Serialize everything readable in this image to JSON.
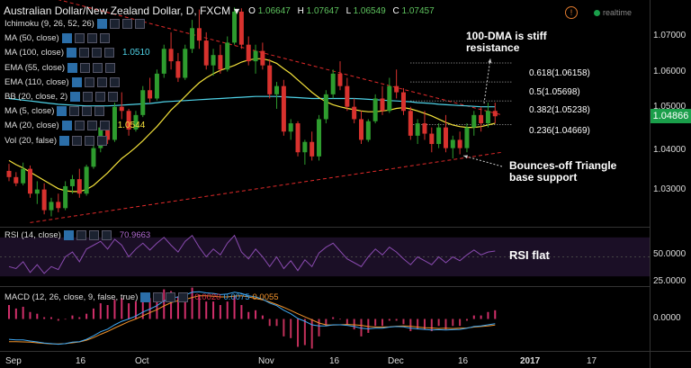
{
  "header": {
    "symbol": "Australian Dollar/New Zealand Dollar, D, FXCM",
    "dropdown": "▾",
    "o_label": "O",
    "o_value": "1.06647",
    "h_label": "H",
    "h_value": "1.07647",
    "l_label": "L",
    "l_value": "1.06549",
    "c_label": "C",
    "c_value": "1.07457",
    "realtime": "realtime",
    "warn": "!"
  },
  "indicators": [
    {
      "label": "Ichimoku (9, 26, 52, 26)",
      "value": "",
      "color": "#ffffff"
    },
    {
      "label": "MA (50, close)",
      "value": "",
      "color": "#ffffff"
    },
    {
      "label": "MA (100, close)",
      "value": "1.0510",
      "color": "#4fd3e8"
    },
    {
      "label": "EMA (55, close)",
      "value": "",
      "color": "#ffffff"
    },
    {
      "label": "EMA (110, close)",
      "value": "",
      "color": "#ffffff"
    },
    {
      "label": "BB (20, close, 2)",
      "value": "",
      "color": "#ffffff"
    },
    {
      "label": "MA (5, close)",
      "value": "",
      "color": "#ffffff"
    },
    {
      "label": "MA (20, close)",
      "value": "1.0544",
      "color": "#f4e23b"
    },
    {
      "label": "Vol (20, false)",
      "value": "",
      "color": "#ffffff"
    }
  ],
  "price_axis": {
    "ticks": [
      "1.07000",
      "1.06000",
      "1.05000",
      "1.04000",
      "1.03000"
    ],
    "current": "1.04866"
  },
  "rsi": {
    "label": "RSI (14, close)",
    "value": "70.9663",
    "value_color": "#b36bd6",
    "ticks": [
      "50.0000",
      "25.0000"
    ],
    "note": "RSI flat"
  },
  "macd": {
    "label": "MACD (12, 26, close, 9, false, true)",
    "v1": "0.0020",
    "v2": "0.0075",
    "v3": "0.0055",
    "c1": "#e0304a",
    "c2": "#3fa9f5",
    "c3": "#f0922b",
    "ticks": [
      "0.0000"
    ]
  },
  "xaxis": {
    "labels": [
      "Sep",
      "16",
      "Oct",
      "Nov",
      "16",
      "Dec",
      "16",
      "2017",
      "17"
    ]
  },
  "fib_levels": [
    {
      "label": "0.618(1.06158)",
      "price": 1.06158
    },
    {
      "label": "0.5(1.05698)",
      "price": 1.05698
    },
    {
      "label": "0.382(1.05238)",
      "price": 1.05238
    },
    {
      "label": "0.236(1.04669)",
      "price": 1.04669
    }
  ],
  "annotations": {
    "resistance": "100-DMA is stiff resistance",
    "support": "Bounces-off Triangle base support"
  },
  "colors": {
    "up": "#2e9c2e",
    "down": "#d8322e",
    "ma20": "#f4e23b",
    "ma100": "#4fd3e8",
    "trend": "#e02a2a"
  },
  "chart_data": {
    "type": "candlestick",
    "title": "Australian Dollar/New Zealand Dollar, D, FXCM",
    "ylabel": "",
    "ylim": [
      1.022,
      1.0755
    ],
    "candles": [
      [
        1.0355,
        1.0372,
        1.033,
        1.034
      ],
      [
        1.034,
        1.0352,
        1.0318,
        1.0325
      ],
      [
        1.0325,
        1.0375,
        1.032,
        1.036
      ],
      [
        1.036,
        1.0368,
        1.029,
        1.03
      ],
      [
        1.03,
        1.033,
        1.0275,
        1.031
      ],
      [
        1.031,
        1.0325,
        1.025,
        1.026
      ],
      [
        1.026,
        1.029,
        1.0245,
        1.028
      ],
      [
        1.028,
        1.03,
        1.0255,
        1.0265
      ],
      [
        1.0265,
        1.033,
        1.026,
        1.0318
      ],
      [
        1.0318,
        1.0345,
        1.03,
        1.0335
      ],
      [
        1.0335,
        1.036,
        1.029,
        1.03
      ],
      [
        1.03,
        1.037,
        1.0295,
        1.0365
      ],
      [
        1.0365,
        1.042,
        1.036,
        1.041
      ],
      [
        1.041,
        1.047,
        1.04,
        1.046
      ],
      [
        1.046,
        1.047,
        1.042,
        1.043
      ],
      [
        1.043,
        1.052,
        1.0425,
        1.051
      ],
      [
        1.051,
        1.0545,
        1.048,
        1.05
      ],
      [
        1.05,
        1.0505,
        1.044,
        1.0455
      ],
      [
        1.0455,
        1.05,
        1.045,
        1.049
      ],
      [
        1.049,
        1.056,
        1.0485,
        1.055
      ],
      [
        1.055,
        1.058,
        1.052,
        1.053
      ],
      [
        1.053,
        1.06,
        1.0525,
        1.059
      ],
      [
        1.059,
        1.066,
        1.058,
        1.065
      ],
      [
        1.065,
        1.069,
        1.06,
        1.062
      ],
      [
        1.062,
        1.064,
        1.057,
        1.058
      ],
      [
        1.058,
        1.066,
        1.0575,
        1.065
      ],
      [
        1.065,
        1.072,
        1.064,
        1.07
      ],
      [
        1.07,
        1.0745,
        1.065,
        1.067
      ],
      [
        1.067,
        1.069,
        1.06,
        1.061
      ],
      [
        1.061,
        1.065,
        1.0585,
        1.0635
      ],
      [
        1.0635,
        1.066,
        1.059,
        1.06
      ],
      [
        1.06,
        1.068,
        1.0595,
        1.0665
      ],
      [
        1.0665,
        1.075,
        1.066,
        1.074
      ],
      [
        1.074,
        1.0748,
        1.065,
        1.066
      ],
      [
        1.066,
        1.068,
        1.061,
        1.062
      ],
      [
        1.062,
        1.066,
        1.059,
        1.0645
      ],
      [
        1.0645,
        1.0665,
        1.06,
        1.061
      ],
      [
        1.061,
        1.0625,
        1.053,
        1.054
      ],
      [
        1.054,
        1.057,
        1.0505,
        1.056
      ],
      [
        1.056,
        1.0575,
        1.044,
        1.045
      ],
      [
        1.045,
        1.048,
        1.043,
        1.047
      ],
      [
        1.047,
        1.0475,
        1.039,
        1.04
      ],
      [
        1.04,
        1.043,
        1.037,
        1.0425
      ],
      [
        1.0425,
        1.045,
        1.038,
        1.039
      ],
      [
        1.039,
        1.049,
        1.038,
        1.048
      ],
      [
        1.048,
        1.055,
        1.047,
        1.054
      ],
      [
        1.054,
        1.06,
        1.053,
        1.059
      ],
      [
        1.059,
        1.062,
        1.055,
        1.056
      ],
      [
        1.056,
        1.058,
        1.05,
        1.051
      ],
      [
        1.051,
        1.053,
        1.047,
        1.048
      ],
      [
        1.048,
        1.05,
        1.042,
        1.043
      ],
      [
        1.043,
        1.048,
        1.0425,
        1.0475
      ],
      [
        1.0475,
        1.054,
        1.047,
        1.053
      ],
      [
        1.053,
        1.056,
        1.049,
        1.05
      ],
      [
        1.05,
        1.058,
        1.0495,
        1.056
      ],
      [
        1.056,
        1.06,
        1.053,
        1.0545
      ],
      [
        1.0545,
        1.0555,
        1.049,
        1.05
      ],
      [
        1.05,
        1.051,
        1.043,
        1.044
      ],
      [
        1.044,
        1.048,
        1.042,
        1.047
      ],
      [
        1.047,
        1.05,
        1.043,
        1.0445
      ],
      [
        1.0445,
        1.046,
        1.04,
        1.042
      ],
      [
        1.042,
        1.047,
        1.041,
        1.046
      ],
      [
        1.046,
        1.049,
        1.04,
        1.041
      ],
      [
        1.041,
        1.044,
        1.0385,
        1.043
      ],
      [
        1.043,
        1.045,
        1.0395,
        1.041
      ],
      [
        1.041,
        1.047,
        1.04,
        1.046
      ],
      [
        1.046,
        1.05,
        1.044,
        1.049
      ],
      [
        1.049,
        1.051,
        1.045,
        1.047
      ],
      [
        1.047,
        1.052,
        1.046,
        1.05
      ],
      [
        1.05,
        1.052,
        1.047,
        1.0487
      ]
    ],
    "ma20": [
      1.038,
      1.037,
      1.0362,
      1.0352,
      1.0342,
      1.0332,
      1.0322,
      1.0312,
      1.0307,
      1.0305,
      1.0305,
      1.031,
      1.032,
      1.0335,
      1.035,
      1.0368,
      1.0385,
      1.0398,
      1.0412,
      1.0428,
      1.0445,
      1.0462,
      1.0482,
      1.0502,
      1.0518,
      1.0535,
      1.0552,
      1.0568,
      1.058,
      1.059,
      1.0598,
      1.0604,
      1.061,
      1.0618,
      1.0623,
      1.0626,
      1.0626,
      1.0622,
      1.0615,
      1.0602,
      1.059,
      1.0575,
      1.056,
      1.0545,
      1.0532,
      1.0522,
      1.0515,
      1.051,
      1.0506,
      1.0503,
      1.05,
      1.0498,
      1.0498,
      1.05,
      1.0502,
      1.0506,
      1.0508,
      1.0505,
      1.05,
      1.0494,
      1.0488,
      1.048,
      1.0472,
      1.0466,
      1.0462,
      1.046,
      1.046,
      1.0462,
      1.0466,
      1.047
    ],
    "ma100": [
      1.053,
      1.0528,
      1.0526,
      1.0524,
      1.0522,
      1.052,
      1.0518,
      1.0516,
      1.0515,
      1.0514,
      1.0513,
      1.0512,
      1.0512,
      1.0512,
      1.0512,
      1.0513,
      1.0514,
      1.0515,
      1.0516,
      1.0517,
      1.0518,
      1.052,
      1.0522,
      1.0523,
      1.0524,
      1.0525,
      1.0526,
      1.0527,
      1.0528,
      1.0529,
      1.053,
      1.0531,
      1.0532,
      1.0533,
      1.0534,
      1.0535,
      1.0535,
      1.0535,
      1.0535,
      1.0534,
      1.0533,
      1.0532,
      1.0531,
      1.053,
      1.053,
      1.053,
      1.053,
      1.053,
      1.053,
      1.053,
      1.0529,
      1.0528,
      1.0527,
      1.0526,
      1.0525,
      1.0524,
      1.0523,
      1.0522,
      1.052,
      1.0519,
      1.0518,
      1.0516,
      1.0515,
      1.0514,
      1.0513,
      1.0512,
      1.0511,
      1.051,
      1.051,
      1.051
    ],
    "rsi_range": [
      20,
      80
    ],
    "rsi": [
      40,
      38,
      45,
      34,
      42,
      33,
      40,
      37,
      50,
      55,
      45,
      58,
      62,
      66,
      58,
      68,
      62,
      50,
      58,
      64,
      57,
      64,
      70,
      62,
      55,
      66,
      72,
      60,
      50,
      58,
      52,
      64,
      72,
      55,
      48,
      58,
      50,
      40,
      50,
      38,
      46,
      36,
      47,
      40,
      54,
      60,
      64,
      56,
      48,
      44,
      40,
      50,
      58,
      52,
      60,
      55,
      48,
      42,
      50,
      46,
      42,
      50,
      44,
      50,
      46,
      52,
      57,
      52,
      55,
      56
    ],
    "macd_range": [
      -0.011,
      0.011
    ],
    "macd_hist": [
      0.0008,
      0.0006,
      0.0007,
      0.0004,
      0.0003,
      0.0001,
      0.0001,
      -0.0001,
      0.0,
      0.0002,
      0.0001,
      0.0003,
      0.0006,
      0.0009,
      0.0008,
      0.0011,
      0.0012,
      0.0009,
      0.001,
      0.0013,
      0.0012,
      0.0014,
      0.0017,
      0.0016,
      0.0013,
      0.0015,
      0.0018,
      0.0014,
      0.001,
      0.001,
      0.0008,
      0.001,
      0.0013,
      0.0008,
      0.0004,
      0.0005,
      0.0002,
      -0.0004,
      -0.0004,
      -0.001,
      -0.0011,
      -0.0016,
      -0.0015,
      -0.0017,
      -0.001,
      -0.0004,
      0.0001,
      0.0,
      -0.0003,
      -0.0006,
      -0.001,
      -0.0008,
      -0.0004,
      -0.0004,
      -0.0001,
      -0.0001,
      -0.0003,
      -0.0007,
      -0.0006,
      -0.0006,
      -0.0007,
      -0.0004,
      -0.0006,
      -0.0004,
      -0.0004,
      -0.0001,
      0.0002,
      0.0002,
      0.0004,
      0.0005
    ],
    "macd_line": [
      -0.007,
      -0.0072,
      -0.0072,
      -0.0076,
      -0.0079,
      -0.0083,
      -0.0085,
      -0.0087,
      -0.0085,
      -0.008,
      -0.0078,
      -0.007,
      -0.0058,
      -0.0044,
      -0.0035,
      -0.002,
      -0.0008,
      0.0,
      0.001,
      0.0024,
      0.0034,
      0.0046,
      0.0062,
      0.0072,
      0.0076,
      0.0082,
      0.0092,
      0.0094,
      0.009,
      0.0088,
      0.0084,
      0.0086,
      0.0092,
      0.0088,
      0.008,
      0.0076,
      0.0068,
      0.0055,
      0.0046,
      0.003,
      0.0018,
      0.0002,
      -0.0008,
      -0.002,
      -0.0024,
      -0.0024,
      -0.002,
      -0.002,
      -0.0022,
      -0.0026,
      -0.0032,
      -0.0034,
      -0.0032,
      -0.0032,
      -0.0028,
      -0.0026,
      -0.0027,
      -0.0032,
      -0.0034,
      -0.0036,
      -0.0038,
      -0.0037,
      -0.0038,
      -0.0037,
      -0.0036,
      -0.0032,
      -0.0026,
      -0.0024,
      -0.002,
      -0.0016
    ],
    "macd_signal": [
      -0.0078,
      -0.0078,
      -0.0079,
      -0.008,
      -0.0082,
      -0.0084,
      -0.0086,
      -0.0086,
      -0.0085,
      -0.0082,
      -0.0079,
      -0.0073,
      -0.0064,
      -0.0053,
      -0.0043,
      -0.0031,
      -0.002,
      -0.0009,
      0.0,
      0.0011,
      0.0022,
      0.0032,
      0.0045,
      0.0056,
      0.0063,
      0.0067,
      0.0074,
      0.008,
      0.008,
      0.0078,
      0.0076,
      0.0076,
      0.0079,
      0.008,
      0.0076,
      0.0071,
      0.0066,
      0.0059,
      0.005,
      0.004,
      0.0029,
      0.0018,
      0.0007,
      -0.0003,
      -0.0014,
      -0.002,
      -0.0021,
      -0.002,
      -0.0019,
      -0.002,
      -0.0022,
      -0.0026,
      -0.0028,
      -0.0028,
      -0.0027,
      -0.0025,
      -0.0024,
      -0.0025,
      -0.0028,
      -0.003,
      -0.0031,
      -0.0033,
      -0.0032,
      -0.0033,
      -0.0032,
      -0.0031,
      -0.0028,
      -0.0026,
      -0.0024,
      -0.0021
    ],
    "fib_levels": [
      1.06158,
      1.05698,
      1.05238,
      1.04669
    ],
    "trendlines": {
      "resistance": [
        [
          0,
          1.08
        ],
        [
          70,
          1.049
        ]
      ],
      "support": [
        [
          3,
          1.023
        ],
        [
          70,
          1.04
        ]
      ]
    }
  }
}
